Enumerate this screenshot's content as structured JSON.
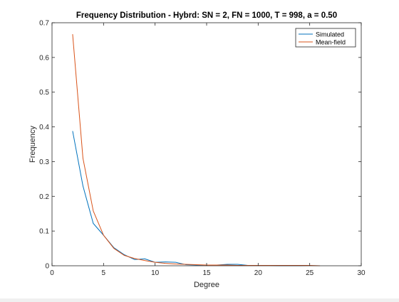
{
  "figure": {
    "background": "#ffffff"
  },
  "chart_data": {
    "type": "line",
    "title": "Frequency Distribution - Hybrd: SN = 2, FN = 1000, T = 998, a = 0.50",
    "xlabel": "Degree",
    "ylabel": "Frequency",
    "xlim": [
      0,
      30
    ],
    "ylim": [
      0,
      0.7
    ],
    "xticks": [
      0,
      5,
      10,
      15,
      20,
      25,
      30
    ],
    "xtick_labels": [
      "0",
      "5",
      "10",
      "15",
      "20",
      "25",
      "30"
    ],
    "yticks": [
      0,
      0.1,
      0.2,
      0.3,
      0.4,
      0.5,
      0.6,
      0.7
    ],
    "ytick_labels": [
      "0",
      "0.1",
      "0.2",
      "0.3",
      "0.4",
      "0.5",
      "0.6",
      "0.7"
    ],
    "grid": false,
    "legend_position": "top-right",
    "series": [
      {
        "name": "Simulated",
        "color": "#0072BD",
        "x": [
          2,
          3,
          4,
          5,
          6,
          7,
          8,
          9,
          10,
          11,
          12,
          13,
          14,
          15,
          16,
          17,
          18,
          19,
          20,
          21,
          22,
          23,
          24,
          25
        ],
        "y": [
          0.388,
          0.23,
          0.122,
          0.088,
          0.052,
          0.032,
          0.018,
          0.02,
          0.01,
          0.011,
          0.01,
          0.003,
          0.002,
          0.002,
          0.002,
          0.004,
          0.004,
          0.001,
          0.001,
          0.001,
          0.0,
          0.0,
          0.0,
          0.001
        ]
      },
      {
        "name": "Mean-field",
        "color": "#D95319",
        "x": [
          2,
          3,
          4,
          5,
          6,
          7,
          8,
          9,
          10,
          11,
          12,
          13,
          14,
          15,
          16,
          17,
          18,
          19,
          20,
          21,
          22,
          23,
          24,
          25,
          26
        ],
        "y": [
          0.667,
          0.31,
          0.158,
          0.088,
          0.05,
          0.03,
          0.021,
          0.015,
          0.01,
          0.007,
          0.005,
          0.004,
          0.003,
          0.002,
          0.002,
          0.002,
          0.001,
          0.001,
          0.001,
          0.001,
          0.001,
          0.001,
          0.001,
          0.001,
          0.0
        ]
      }
    ]
  }
}
